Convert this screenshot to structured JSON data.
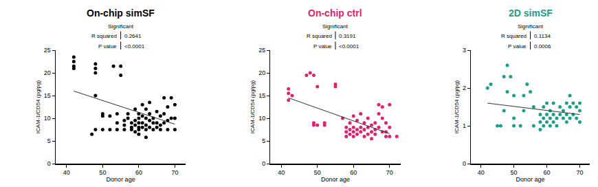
{
  "chart_data": [
    {
      "type": "scatter",
      "title": "On-chip simSF",
      "note": "Significant",
      "stats": [
        {
          "label": "R squared",
          "value": "0.2641"
        },
        {
          "label": "P value",
          "value": "<0.0001"
        }
      ],
      "x_label": "Donor age",
      "y_label": "ICAM-1/CD54 (pg/pg)",
      "color": "#000000",
      "x": [
        42,
        42,
        42,
        42,
        48,
        48,
        48,
        53,
        55,
        55,
        48,
        47,
        48,
        50,
        50,
        50,
        52,
        52,
        54,
        54,
        54,
        56,
        56,
        56,
        57,
        57,
        58,
        58,
        58,
        59,
        59,
        59,
        59,
        60,
        60,
        60,
        60,
        60,
        60,
        61,
        61,
        61,
        61,
        62,
        62,
        62,
        62,
        62,
        63,
        63,
        63,
        63,
        64,
        64,
        64,
        65,
        65,
        65,
        66,
        66,
        66,
        67,
        67,
        67,
        68,
        68,
        68,
        69,
        69,
        70,
        70,
        70
      ],
      "y": [
        23.5,
        22.5,
        21.5,
        21,
        22,
        21,
        20,
        21.5,
        21.5,
        19.5,
        15,
        6.5,
        7.5,
        10.5,
        11,
        7.5,
        10.5,
        7.5,
        11,
        9,
        7.5,
        9.5,
        8.5,
        7.5,
        11,
        10,
        9,
        8,
        7.5,
        12,
        9.5,
        8.5,
        7,
        11,
        10,
        9,
        8,
        7.5,
        6.5,
        13,
        10.5,
        9,
        8,
        12,
        10,
        8.5,
        7.5,
        5.8,
        13.5,
        11,
        9.5,
        8,
        10,
        9,
        7.5,
        11.5,
        9,
        8,
        10.5,
        8.5,
        7.5,
        14.5,
        11,
        9,
        12.5,
        9.5,
        7.5,
        14.5,
        10,
        13,
        10,
        7.5
      ],
      "trend_line": {
        "x": [
          42,
          70
        ],
        "y": [
          16,
          8.7
        ]
      },
      "xlim": [
        37,
        73
      ],
      "xticks": [
        40,
        50,
        60,
        70
      ],
      "ylim": [
        0,
        25
      ],
      "yticks": [
        0,
        5,
        10,
        15,
        20,
        25
      ],
      "grid": false
    },
    {
      "type": "scatter",
      "title": "On-chip ctrl",
      "note": "Significant",
      "stats": [
        {
          "label": "R squared",
          "value": "0.3191"
        },
        {
          "label": "P value",
          "value": "<0.0001"
        }
      ],
      "x_label": "Donor age",
      "y_label": "ICAM-1/CD54 (pg/pg)",
      "color": "#e0226e",
      "x": [
        42,
        42,
        42,
        43,
        47,
        48,
        49,
        50,
        55,
        55,
        49,
        49,
        50,
        52,
        52,
        57,
        58,
        58,
        58,
        59,
        59,
        59,
        60,
        60,
        60,
        60,
        61,
        61,
        61,
        62,
        62,
        62,
        63,
        63,
        63,
        64,
        64,
        64,
        65,
        65,
        65,
        66,
        66,
        66,
        67,
        67,
        67,
        68,
        68,
        68,
        69,
        69,
        69,
        70,
        70,
        70,
        72
      ],
      "y": [
        15.5,
        16.5,
        14,
        15,
        19.5,
        20,
        19.5,
        17,
        17,
        17.5,
        9,
        8.5,
        8.5,
        8.5,
        9,
        10,
        8,
        7,
        6,
        9,
        7.5,
        6.5,
        10.5,
        8,
        7,
        6,
        9.5,
        7.5,
        6.5,
        11,
        8,
        7,
        9,
        7.5,
        6,
        10,
        8,
        6.5,
        8.5,
        7,
        5.5,
        9,
        7.5,
        6.5,
        13,
        11,
        8,
        12.5,
        10,
        7,
        9,
        7,
        6,
        13,
        8,
        6,
        6
      ],
      "trend_line": {
        "x": [
          42,
          70
        ],
        "y": [
          14.5,
          6.6
        ]
      },
      "xlim": [
        37,
        73
      ],
      "xticks": [
        40,
        50,
        60,
        70
      ],
      "ylim": [
        0,
        25
      ],
      "yticks": [
        0,
        5,
        10,
        15,
        20,
        25
      ],
      "grid": false
    },
    {
      "type": "scatter",
      "title": "2D simSF",
      "note": "Significant",
      "stats": [
        {
          "label": "R squared",
          "value": "0.1134"
        },
        {
          "label": "P value",
          "value": "0.0006"
        }
      ],
      "x_label": "Donor age",
      "y_label": "ICAM-1/CD54 (pg/pg)",
      "color": "#1b9e8c",
      "x": [
        42,
        43,
        47,
        48,
        48,
        49,
        50,
        53,
        54,
        55,
        45,
        46,
        47,
        50,
        50,
        52,
        53,
        56,
        56,
        58,
        58,
        58,
        59,
        59,
        59,
        60,
        60,
        60,
        61,
        61,
        61,
        62,
        62,
        62,
        63,
        63,
        64,
        64,
        65,
        65,
        66,
        66,
        66,
        67,
        67,
        67,
        68,
        68,
        69,
        69,
        70,
        70,
        70
      ],
      "y": [
        2.0,
        2.1,
        2.3,
        2.6,
        1.9,
        2.3,
        1.8,
        1.8,
        2.1,
        1.9,
        1.0,
        1.0,
        1.4,
        1.2,
        1.0,
        1.0,
        1.4,
        1.5,
        1.0,
        1.3,
        1.1,
        0.9,
        1.5,
        1.2,
        1.0,
        1.6,
        1.3,
        1.1,
        1.4,
        1.2,
        1.0,
        1.6,
        1.3,
        1.1,
        1.2,
        1.0,
        1.5,
        1.3,
        1.4,
        1.2,
        1.6,
        1.3,
        1.1,
        1.8,
        1.5,
        1.2,
        1.6,
        1.3,
        1.5,
        1.2,
        1.6,
        1.4,
        1.1
      ],
      "trend_line": {
        "x": [
          42,
          70
        ],
        "y": [
          1.6,
          1.3
        ]
      },
      "xlim": [
        37,
        73
      ],
      "xticks": [
        40,
        50,
        60,
        70
      ],
      "ylim": [
        0,
        3
      ],
      "yticks": [
        0,
        1,
        2,
        3
      ],
      "grid": false
    }
  ]
}
